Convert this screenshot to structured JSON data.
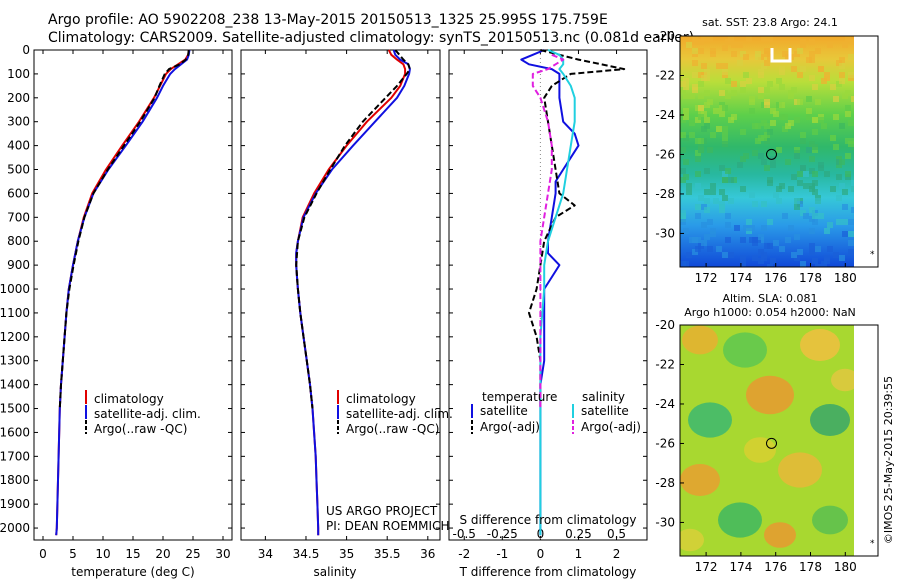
{
  "header": {
    "line1": "Argo profile: AO 5902208_238 13-May-2015 20150513_1325 25.995S 175.759E",
    "line2": "Climatology: CARS2009. Satellite-adjusted climatology: synTS_20150513.nc (0.081d earlier)"
  },
  "credits": {
    "line1": "US ARGO PROJECT",
    "line2": "PI: DEAN ROEMMICH"
  },
  "timestamp": "©IMOS 25-May-2015 20:39:55",
  "colors": {
    "climatology": "#e00000",
    "satellite": "#1010e0",
    "argo": "#000000",
    "cyan": "#20d0e0",
    "magenta": "#e020e0"
  },
  "depth_axis": {
    "range": [
      0,
      2050
    ],
    "ticks": [
      "0",
      "100",
      "200",
      "300",
      "400",
      "500",
      "600",
      "700",
      "800",
      "900",
      "1000",
      "1100",
      "1200",
      "1300",
      "1400",
      "1500",
      "1600",
      "1700",
      "1800",
      "1900",
      "2000"
    ]
  },
  "chart_data": [
    {
      "type": "line",
      "panel": "temperature",
      "xlabel": "temperature (deg C)",
      "xlim": [
        -1.5,
        31.5
      ],
      "xticks": [
        "0",
        "5",
        "10",
        "15",
        "20",
        "25",
        "30"
      ],
      "legend": [
        "climatology",
        "satellite-adj. clim.",
        "Argo(..raw -QC)"
      ],
      "series": [
        {
          "name": "climatology",
          "depth": [
            0,
            20,
            40,
            60,
            80,
            100,
            150,
            200,
            300,
            400,
            500,
            600,
            700,
            800,
            900,
            1000,
            1100,
            1200,
            1300,
            1400,
            1500,
            1600,
            1700,
            1800,
            1900,
            2000,
            2030
          ],
          "values": [
            24.3,
            24.2,
            23.7,
            22.5,
            21.3,
            20.5,
            19.5,
            18.5,
            16.0,
            13.2,
            10.5,
            8.2,
            6.8,
            5.8,
            5.0,
            4.3,
            3.9,
            3.6,
            3.3,
            3.0,
            2.8,
            2.7,
            2.6,
            2.5,
            2.4,
            2.3,
            2.2
          ]
        },
        {
          "name": "satellite-adj. clim.",
          "depth": [
            0,
            20,
            40,
            60,
            80,
            100,
            150,
            200,
            300,
            400,
            500,
            600,
            700,
            800,
            900,
            1000,
            1100,
            1200,
            1300,
            1400,
            1500,
            1600,
            1700,
            1800,
            1900,
            2000,
            2030
          ],
          "values": [
            24.4,
            24.3,
            24.0,
            23.0,
            22.0,
            21.2,
            20.0,
            19.0,
            16.6,
            13.8,
            10.9,
            8.4,
            6.9,
            5.8,
            5.0,
            4.3,
            3.9,
            3.6,
            3.3,
            3.0,
            2.8,
            2.7,
            2.6,
            2.5,
            2.4,
            2.3,
            2.2
          ]
        },
        {
          "name": "Argo(..raw -QC)",
          "depth": [
            0,
            20,
            40,
            60,
            80,
            100,
            150,
            200,
            300,
            400,
            500,
            600,
            700,
            800,
            900,
            1000,
            1100,
            1200,
            1300,
            1400,
            1500
          ],
          "values": [
            24.3,
            24.2,
            23.8,
            22.8,
            21.0,
            20.3,
            19.4,
            18.6,
            16.2,
            13.5,
            10.8,
            8.4,
            6.9,
            5.9,
            5.1,
            4.4,
            3.9,
            3.6,
            3.3,
            3.0,
            2.8
          ]
        }
      ]
    },
    {
      "type": "line",
      "panel": "salinity",
      "xlabel": "salinity",
      "xlim": [
        33.7,
        36.15
      ],
      "xticks": [
        "34",
        "34.5",
        "35",
        "35.5",
        "36"
      ],
      "legend": [
        "climatology",
        "satellite-adj. clim.",
        "Argo(..raw -QC)"
      ],
      "series": [
        {
          "name": "climatology",
          "depth": [
            0,
            20,
            40,
            60,
            80,
            100,
            150,
            200,
            300,
            400,
            500,
            600,
            700,
            800,
            850,
            900,
            950,
            1000,
            1100,
            1200,
            1300,
            1400,
            1500,
            1600,
            1700,
            1800,
            1900,
            2000,
            2030
          ],
          "values": [
            35.52,
            35.55,
            35.62,
            35.7,
            35.72,
            35.72,
            35.66,
            35.55,
            35.25,
            35.0,
            34.78,
            34.6,
            34.46,
            34.4,
            34.38,
            34.38,
            34.39,
            34.4,
            34.43,
            34.47,
            34.51,
            34.55,
            34.58,
            34.6,
            34.62,
            34.63,
            34.64,
            34.65,
            34.65
          ]
        },
        {
          "name": "satellite-adj. clim.",
          "depth": [
            0,
            20,
            40,
            60,
            80,
            100,
            150,
            200,
            300,
            400,
            500,
            600,
            700,
            800,
            850,
            900,
            950,
            1000,
            1100,
            1200,
            1300,
            1400,
            1500,
            1600,
            1700,
            1800,
            1900,
            2000,
            2030
          ],
          "values": [
            35.58,
            35.6,
            35.66,
            35.76,
            35.78,
            35.77,
            35.71,
            35.62,
            35.35,
            35.08,
            34.82,
            34.62,
            34.47,
            34.4,
            34.38,
            34.38,
            34.39,
            34.4,
            34.43,
            34.47,
            34.51,
            34.55,
            34.58,
            34.6,
            34.62,
            34.63,
            34.64,
            34.65,
            34.65
          ]
        },
        {
          "name": "Argo(..raw -QC)",
          "depth": [
            0,
            20,
            40,
            60,
            80,
            100,
            150,
            200,
            300,
            400,
            500,
            600,
            700,
            800,
            900,
            1000,
            1100,
            1200,
            1300,
            1400,
            1500
          ],
          "values": [
            35.6,
            35.65,
            35.7,
            35.76,
            35.78,
            35.74,
            35.62,
            35.48,
            35.2,
            34.98,
            34.8,
            34.63,
            34.48,
            34.4,
            34.38,
            34.4,
            34.43,
            34.47,
            34.51,
            34.55,
            34.58
          ]
        }
      ]
    },
    {
      "type": "line",
      "panel": "difference",
      "xlabel": "T difference from climatology",
      "xlabel_top": "S difference from climatology",
      "xlim": [
        -2.4,
        2.8
      ],
      "xticks": [
        "-2",
        "-1",
        "0",
        "1",
        "2"
      ],
      "s_xticks": [
        {
          "label": "-0.5",
          "value": -2.0
        },
        {
          "label": "-0.25",
          "value": -1.0
        },
        {
          "label": "0",
          "value": 0
        },
        {
          "label": "0.25",
          "value": 1.0
        },
        {
          "label": "0.5",
          "value": 2.0
        }
      ],
      "legend_groups": [
        {
          "title": "temperature",
          "items": [
            "satellite",
            "Argo(-adj)"
          ]
        },
        {
          "title": "salinity",
          "items": [
            "satellite",
            "Argo(-adj)"
          ]
        }
      ],
      "series": [
        {
          "name": "T satellite",
          "depth": [
            0,
            20,
            40,
            60,
            80,
            100,
            150,
            200,
            300,
            350,
            400,
            450,
            500,
            550,
            600,
            700,
            800,
            850,
            900,
            950,
            1000,
            1100,
            1200,
            1300,
            1400,
            1500,
            1600,
            1700,
            1800,
            1900,
            2000,
            2030
          ],
          "values": [
            0.1,
            -0.2,
            -0.5,
            -0.3,
            0.3,
            0.5,
            0.5,
            0.5,
            0.6,
            0.9,
            1.0,
            0.8,
            0.6,
            0.4,
            0.4,
            0.3,
            0.2,
            0.2,
            0.5,
            0.3,
            0.1,
            0.1,
            0.1,
            0.1,
            0.0,
            0.0,
            0.0,
            0.0,
            0.0,
            0.0,
            0.0,
            0.0
          ]
        },
        {
          "name": "T Argo(-adj)",
          "depth": [
            0,
            20,
            40,
            60,
            80,
            90,
            100,
            120,
            150,
            200,
            300,
            400,
            500,
            600,
            650,
            700,
            800,
            900,
            1000,
            1100,
            1200,
            1300,
            1400,
            1500
          ],
          "values": [
            0.0,
            0.5,
            1.0,
            1.6,
            2.2,
            1.5,
            0.8,
            0.6,
            0.3,
            0.1,
            0.2,
            0.3,
            0.4,
            0.5,
            0.9,
            0.4,
            0.1,
            0.0,
            -0.1,
            -0.3,
            -0.1,
            0.0,
            0.0,
            0.0
          ]
        },
        {
          "name": "S satellite",
          "depth": [
            0,
            20,
            40,
            60,
            80,
            100,
            150,
            200,
            300,
            400,
            500,
            600,
            700,
            800,
            900,
            1000,
            1200,
            1400,
            1600,
            1800,
            2000,
            2030
          ],
          "values": [
            0.2,
            0.5,
            0.6,
            0.6,
            0.5,
            0.6,
            0.8,
            0.9,
            0.9,
            0.8,
            0.7,
            0.6,
            0.4,
            0.2,
            0.1,
            0.1,
            0.0,
            0.0,
            0.0,
            0.0,
            0.0,
            0.0
          ]
        },
        {
          "name": "S Argo(-adj)",
          "depth": [
            20,
            40,
            60,
            80,
            100,
            150,
            200,
            300,
            400,
            500,
            600,
            700,
            800,
            900,
            1000,
            1100,
            1200,
            1300,
            1400,
            1500
          ],
          "values": [
            0.3,
            0.6,
            0.4,
            0.2,
            -0.2,
            -0.2,
            0.0,
            0.2,
            0.3,
            0.3,
            0.2,
            0.1,
            0.0,
            0.0,
            0.0,
            0.0,
            0.0,
            0.0,
            0.0,
            0.0
          ]
        }
      ]
    },
    {
      "type": "heatmap",
      "panel": "sst-map",
      "title": "sat. SST: 23.8 Argo: 24.1",
      "xlim": [
        170.5,
        180.5
      ],
      "ylim": [
        -31.7,
        -20
      ],
      "xticks": [
        "172",
        "174",
        "176",
        "178",
        "180"
      ],
      "yticks": [
        "-20",
        "-22",
        "-24",
        "-26",
        "-28",
        "-30"
      ],
      "marker": {
        "lon": 175.759,
        "lat": -25.995
      }
    },
    {
      "type": "heatmap",
      "panel": "sla-map",
      "title_line1": "Altim. SLA: 0.081",
      "title_line2": "Argo h1000: 0.054 h2000: NaN",
      "xlim": [
        170.5,
        180.5
      ],
      "ylim": [
        -31.7,
        -20
      ],
      "xticks": [
        "172",
        "174",
        "176",
        "178",
        "180"
      ],
      "yticks": [
        "-20",
        "-22",
        "-24",
        "-26",
        "-28",
        "-30"
      ],
      "marker": {
        "lon": 175.759,
        "lat": -25.995
      }
    }
  ]
}
